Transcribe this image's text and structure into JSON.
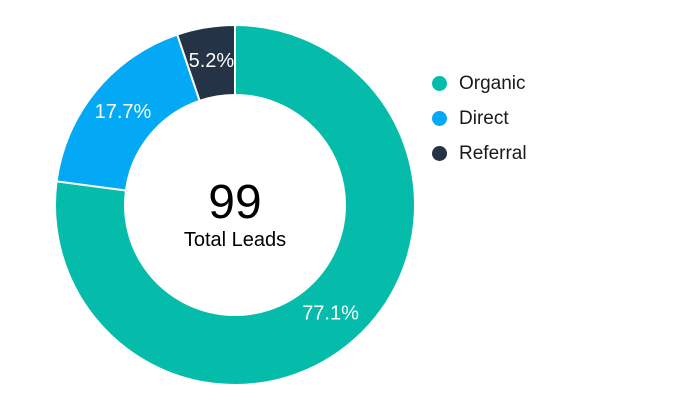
{
  "chart_data": {
    "type": "pie",
    "variant": "donut",
    "categories": [
      "Organic",
      "Direct",
      "Referral"
    ],
    "values": [
      77.1,
      17.7,
      5.2
    ],
    "value_labels": [
      "77.1%",
      "17.7%",
      "5.2%"
    ],
    "colors": [
      "#05bcab",
      "#03a9f4",
      "#243345"
    ],
    "center_value": "99",
    "center_label": "Total Leads",
    "legend_position": "right"
  }
}
